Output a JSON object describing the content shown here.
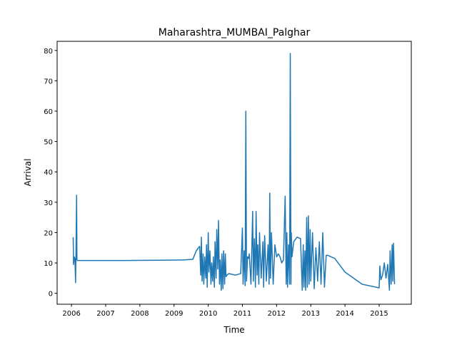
{
  "chart_data": {
    "type": "line",
    "title": "Maharashtra_MUMBAI_Palghar",
    "x_label": "Time",
    "y_label": "Arrival",
    "color": "#1f77b4",
    "xlim": [
      2005.58,
      2015.94
    ],
    "ylim": [
      -3.6,
      83.0
    ],
    "xticks": [
      2006,
      2007,
      2008,
      2009,
      2010,
      2011,
      2012,
      2013,
      2014,
      2015
    ],
    "yticks": [
      0,
      10,
      20,
      30,
      40,
      50,
      60,
      70,
      80
    ],
    "x": [
      2006.05,
      2006.06,
      2006.08,
      2006.1,
      2006.12,
      2006.13,
      2006.15,
      2006.16,
      2006.18,
      2006.5,
      2007.5,
      2008.5,
      2009.3,
      2009.55,
      2009.65,
      2009.75,
      2009.78,
      2009.8,
      2009.82,
      2009.85,
      2009.87,
      2009.9,
      2009.93,
      2009.95,
      2009.97,
      2010.0,
      2010.02,
      2010.05,
      2010.08,
      2010.1,
      2010.13,
      2010.15,
      2010.18,
      2010.2,
      2010.23,
      2010.25,
      2010.28,
      2010.3,
      2010.33,
      2010.35,
      2010.38,
      2010.4,
      2010.43,
      2010.45,
      2010.48,
      2010.5,
      2010.52,
      2010.55,
      2010.6,
      2010.8,
      2010.95,
      2011.0,
      2011.02,
      2011.05,
      2011.08,
      2011.1,
      2011.12,
      2011.15,
      2011.18,
      2011.2,
      2011.25,
      2011.3,
      2011.32,
      2011.35,
      2011.38,
      2011.4,
      2011.43,
      2011.45,
      2011.48,
      2011.5,
      2011.55,
      2011.6,
      2011.62,
      2011.65,
      2011.7,
      2011.75,
      2011.78,
      2011.8,
      2011.82,
      2011.85,
      2011.9,
      2011.95,
      2012.0,
      2012.05,
      2012.1,
      2012.15,
      2012.2,
      2012.25,
      2012.28,
      2012.3,
      2012.32,
      2012.35,
      2012.38,
      2012.4,
      2012.42,
      2012.43,
      2012.45,
      2012.5,
      2012.6,
      2012.7,
      2012.75,
      2012.78,
      2012.8,
      2012.83,
      2012.85,
      2012.88,
      2012.9,
      2012.93,
      2012.95,
      2012.98,
      2013.0,
      2013.05,
      2013.1,
      2013.15,
      2013.2,
      2013.25,
      2013.3,
      2013.35,
      2013.4,
      2013.45,
      2013.5,
      2013.7,
      2014.0,
      2014.5,
      2015.0,
      2015.02,
      2015.05,
      2015.1,
      2015.15,
      2015.2,
      2015.25,
      2015.3,
      2015.32,
      2015.35,
      2015.38,
      2015.4,
      2015.42,
      2015.45
    ],
    "values": [
      18.5,
      9.5,
      12,
      11.5,
      3.5,
      12,
      32.3,
      11,
      10.8,
      10.8,
      10.8,
      10.9,
      11,
      11.2,
      14,
      15.5,
      6,
      18.5,
      4,
      13,
      3,
      12,
      5,
      16,
      2,
      20,
      7,
      14,
      3,
      10,
      4,
      12,
      2,
      17,
      5,
      21,
      8,
      24,
      3,
      11,
      1,
      13,
      1.5,
      14,
      3,
      13,
      5.5,
      6,
      6.5,
      6,
      6.5,
      21.5,
      3,
      14,
      2.5,
      60,
      4,
      12,
      11.5,
      13,
      3,
      27,
      4,
      18,
      2,
      27,
      6,
      16,
      3,
      20,
      5,
      17,
      2,
      19,
      4,
      16,
      3,
      33,
      5,
      20,
      3,
      16,
      12,
      13,
      12,
      10,
      11,
      32,
      3,
      20,
      2,
      16,
      3,
      79,
      3,
      20,
      12,
      17,
      18.5,
      18,
      1,
      16,
      2,
      14,
      1,
      25,
      2,
      25.5,
      3,
      21,
      4,
      20,
      1.5,
      15,
      4,
      17,
      3,
      20,
      2,
      12.5,
      12.5,
      11.5,
      7,
      3,
      1.8,
      9,
      4.5,
      6,
      10,
      5,
      9.5,
      1,
      14,
      3,
      16,
      4,
      16.5,
      3
    ]
  }
}
